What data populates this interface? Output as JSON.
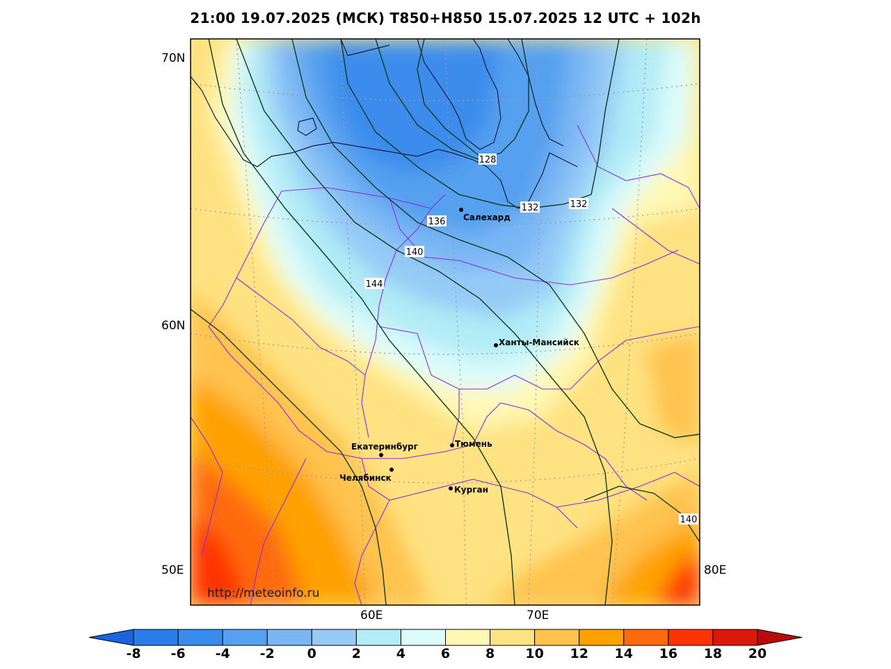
{
  "title": "21:00 19.07.2025 (МСК) T850+H850 15.07.2025 12 UTC + 102h",
  "watermark": "http://meteoinfo.ru",
  "lat_labels": [
    "70N",
    "60N",
    "50E"
  ],
  "lon_labels": [
    "60E",
    "70E",
    "80E"
  ],
  "cities": [
    {
      "name": "Салехард"
    },
    {
      "name": "Ханты-Мансийск"
    },
    {
      "name": "Екатеринбург"
    },
    {
      "name": "Тюмень"
    },
    {
      "name": "Челябинск"
    },
    {
      "name": "Курган"
    }
  ],
  "contour_labels": [
    "128",
    "132",
    "132",
    "136",
    "140",
    "144",
    "140"
  ],
  "colorbar": {
    "ticks": [
      "-8",
      "-6",
      "-4",
      "-2",
      "0",
      "2",
      "4",
      "6",
      "8",
      "10",
      "12",
      "14",
      "16",
      "18",
      "20"
    ],
    "colors": [
      "#2a7ce8",
      "#3a8cec",
      "#55a0ef",
      "#79b6f4",
      "#96cbf6",
      "#b2ecf6",
      "#dcfbfb",
      "#fff8b5",
      "#ffe281",
      "#ffc24d",
      "#ffa100",
      "#ff6a0e",
      "#ff3200",
      "#d91a08"
    ],
    "under_color": "#1a64e0",
    "over_color": "#b80a0a"
  }
}
